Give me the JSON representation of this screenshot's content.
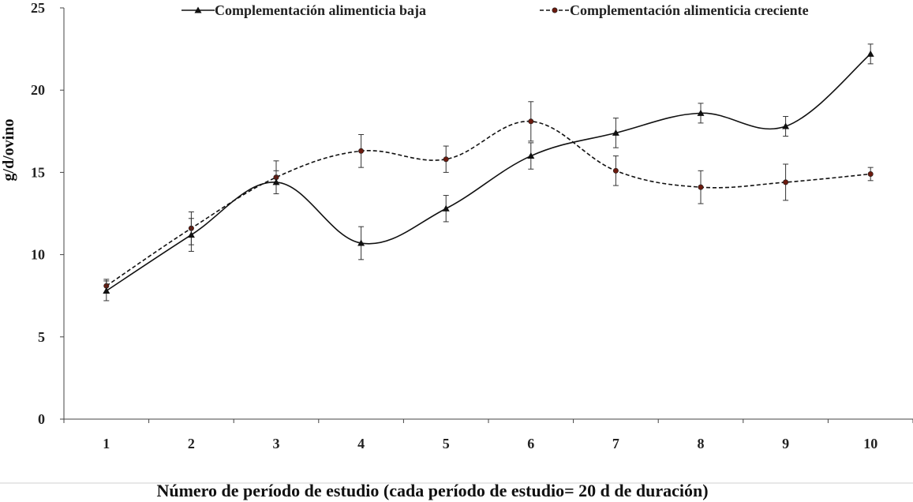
{
  "chart_data": {
    "type": "line",
    "title": "",
    "xlabel": "Número de período de estudio (cada período de estudio= 20 d de duración)",
    "ylabel": "g/d/ovino",
    "categories": [
      "1",
      "2",
      "3",
      "4",
      "5",
      "6",
      "7",
      "8",
      "9",
      "10"
    ],
    "y_ticks": [
      "0",
      "5",
      "10",
      "15",
      "20",
      "25"
    ],
    "ylim": [
      0,
      25
    ],
    "grid": false,
    "legend_position": "top",
    "series": [
      {
        "name": "Complementación alimenticia baja",
        "values": [
          7.8,
          11.2,
          14.4,
          10.7,
          12.8,
          16.0,
          17.4,
          18.6,
          17.8,
          22.2
        ],
        "error": [
          0.6,
          1.0,
          0.7,
          1.0,
          0.8,
          0.8,
          0.9,
          0.6,
          0.6,
          0.6
        ],
        "color": "#111111",
        "line_style": "solid",
        "marker": "triangle"
      },
      {
        "name": "Complementación alimenticia creciente",
        "values": [
          8.1,
          11.6,
          14.7,
          16.3,
          15.8,
          18.1,
          15.1,
          14.1,
          14.4,
          14.9
        ],
        "error": [
          0.4,
          1.0,
          1.0,
          1.0,
          0.8,
          1.2,
          0.9,
          1.0,
          1.1,
          0.4
        ],
        "color": "#111111",
        "marker_fill": "#6b1a0e",
        "line_style": "dashed",
        "marker": "circle"
      }
    ]
  }
}
